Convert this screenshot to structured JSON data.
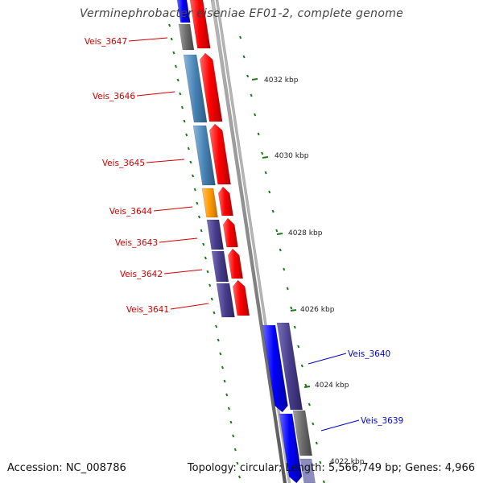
{
  "title": "Verminephrobacter eiseniae EF01-2, complete genome",
  "footer": {
    "accession": "Accession: NC_008786",
    "summary": "Topology: circular; Length: 5,566,749 bp; Genes: 4,966"
  },
  "scale_labels": [
    "4032 kbp",
    "4030 kbp",
    "4028 kbp",
    "4026 kbp",
    "4024 kbp",
    "4022 kbp"
  ],
  "genes_left": [
    {
      "label": "Veis_3647",
      "color": "#cc0000"
    },
    {
      "label": "Veis_3646",
      "color": "#cc0000"
    },
    {
      "label": "Veis_3645",
      "color": "#cc0000"
    },
    {
      "label": "Veis_3644",
      "color": "#cc0000"
    },
    {
      "label": "Veis_3643",
      "color": "#cc0000"
    },
    {
      "label": "Veis_3642",
      "color": "#cc0000"
    },
    {
      "label": "Veis_3641",
      "color": "#cc0000"
    }
  ],
  "genes_right": [
    {
      "label": "Veis_3640",
      "color": "#0000cc"
    },
    {
      "label": "Veis_3639",
      "color": "#0000cc"
    }
  ],
  "colors": {
    "forward_strand": "#ff0000",
    "reverse_strand": "#0000ff",
    "cog_steelblue": "#4682b4",
    "cog_orange": "#ff9900",
    "cog_purple": "#483d8b",
    "cog_gray": "#6b6b6b",
    "tick_green": "#1a7a1a",
    "backbone": "#8a8a8a"
  }
}
